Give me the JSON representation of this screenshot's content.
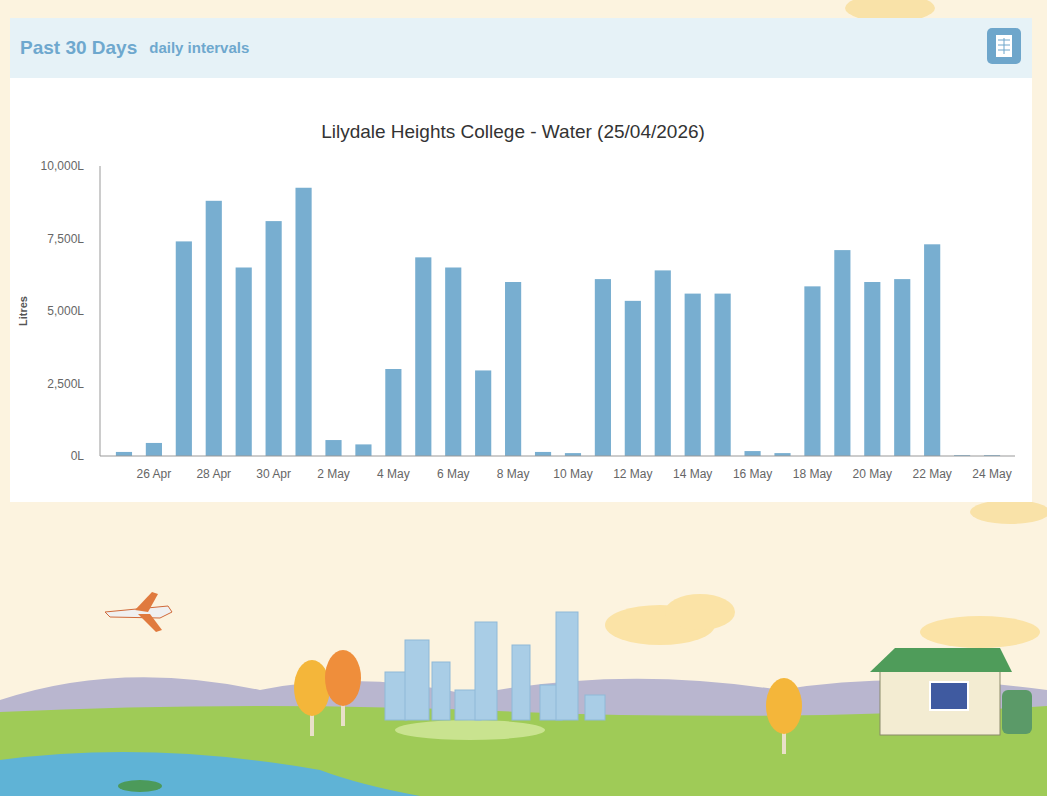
{
  "panel": {
    "title": "Past 30 Days",
    "interval": "daily intervals"
  },
  "chart_data": {
    "type": "bar",
    "title": "Lilydale Heights College - Water (25/04/2026)",
    "y_label": "Litres",
    "categories": [
      null,
      "26 Apr",
      null,
      "28 Apr",
      null,
      "30 Apr",
      null,
      "2 May",
      null,
      "4 May",
      null,
      "6 May",
      null,
      "8 May",
      null,
      "10 May",
      null,
      "12 May",
      null,
      "14 May",
      null,
      "16 May",
      null,
      "18 May",
      null,
      "20 May",
      null,
      "22 May",
      null,
      "24 May"
    ],
    "values": [
      140,
      450,
      7400,
      8800,
      6500,
      8100,
      9250,
      550,
      400,
      3000,
      6850,
      6500,
      2950,
      6000,
      140,
      100,
      6100,
      5350,
      6400,
      5600,
      5600,
      170,
      100,
      5850,
      7100,
      6000,
      6100,
      7300,
      30,
      30
    ],
    "color": "#78aed0",
    "ylim": [
      0,
      10000
    ],
    "yticks": [
      {
        "value": 0,
        "label": "0L"
      },
      {
        "value": 2500,
        "label": "2,500L"
      },
      {
        "value": 5000,
        "label": "5,000L"
      },
      {
        "value": 7500,
        "label": "7,500L"
      },
      {
        "value": 10000,
        "label": "10,000L"
      }
    ],
    "grid": false
  }
}
